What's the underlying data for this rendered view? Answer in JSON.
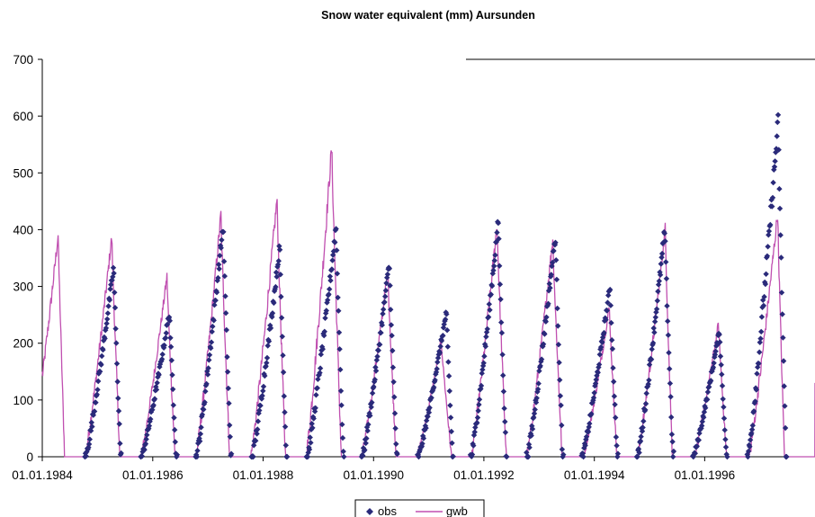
{
  "chart_data": {
    "type": "line",
    "title": "Snow water equivalent  (mm)  Aursunden",
    "xlabel": "",
    "ylabel": "",
    "ylim": [
      0,
      700
    ],
    "yticks": [
      "0",
      "100",
      "200",
      "300",
      "400",
      "500",
      "600",
      "700"
    ],
    "xlim": [
      "01.01.1984",
      "31.12.1997"
    ],
    "xticks": [
      "01.01.1984",
      "01.01.1986",
      "01.01.1988",
      "01.01.1990",
      "01.01.1992",
      "01.01.1994",
      "01.01.1996"
    ],
    "grid": false,
    "legend_position": "bottom-center",
    "series": [
      {
        "name": "obs",
        "style": "diamond-markers",
        "color": "#2a2a7a",
        "seasons": [
          {
            "start": "1984-10-15",
            "peak_date": "1985-04-18",
            "peak": 335,
            "end": "1985-06-02"
          },
          {
            "start": "1985-10-20",
            "peak_date": "1986-04-22",
            "peak": 255,
            "end": "1986-06-05"
          },
          {
            "start": "1986-10-18",
            "peak_date": "1987-04-12",
            "peak": 410,
            "end": "1987-06-01"
          },
          {
            "start": "1987-10-22",
            "peak_date": "1988-04-20",
            "peak": 370,
            "end": "1988-06-03"
          },
          {
            "start": "1988-10-20",
            "peak_date": "1989-04-28",
            "peak": 405,
            "end": "1989-06-15"
          },
          {
            "start": "1989-10-20",
            "peak_date": "1990-04-15",
            "peak": 342,
            "end": "1990-06-03"
          },
          {
            "start": "1990-10-25",
            "peak_date": "1991-04-28",
            "peak": 255,
            "end": "1991-06-08"
          },
          {
            "start": "1991-10-10",
            "peak_date": "1992-04-05",
            "peak": 415,
            "end": "1992-05-28"
          },
          {
            "start": "1992-10-15",
            "peak_date": "1993-04-18",
            "peak": 390,
            "end": "1993-06-05"
          },
          {
            "start": "1993-10-15",
            "peak_date": "1994-04-15",
            "peak": 300,
            "end": "1994-06-01"
          },
          {
            "start": "1994-10-15",
            "peak_date": "1995-04-12",
            "peak": 400,
            "end": "1995-06-05"
          },
          {
            "start": "1995-10-20",
            "peak_date": "1996-04-08",
            "peak": 222,
            "end": "1996-05-25"
          },
          {
            "start": "1996-10-15",
            "peak_date": "1997-05-01",
            "peak": 590,
            "end": "1997-06-22"
          }
        ]
      },
      {
        "name": "gwb",
        "style": "line",
        "color": "#c04fb0",
        "start_value": 150,
        "seasons": [
          {
            "start": "1983-10-20",
            "peak_date": "1984-04-15",
            "peak": 390,
            "end": "1984-05-28"
          },
          {
            "start": "1984-10-10",
            "peak_date": "1985-04-05",
            "peak": 388,
            "end": "1985-05-28"
          },
          {
            "start": "1985-10-15",
            "peak_date": "1986-04-05",
            "peak": 318,
            "end": "1986-05-28"
          },
          {
            "start": "1986-10-15",
            "peak_date": "1987-03-28",
            "peak": 428,
            "end": "1987-05-25"
          },
          {
            "start": "1987-10-12",
            "peak_date": "1988-04-02",
            "peak": 455,
            "end": "1988-05-28"
          },
          {
            "start": "1988-10-12",
            "peak_date": "1989-03-30",
            "peak": 545,
            "end": "1989-06-02"
          },
          {
            "start": "1989-10-15",
            "peak_date": "1990-04-05",
            "peak": 328,
            "end": "1990-05-30"
          },
          {
            "start": "1990-10-15",
            "peak_date": "1991-03-25",
            "peak": 205,
            "end": "1991-06-01"
          },
          {
            "start": "1991-10-10",
            "peak_date": "1992-03-28",
            "peak": 410,
            "end": "1992-05-28"
          },
          {
            "start": "1992-10-10",
            "peak_date": "1993-04-01",
            "peak": 385,
            "end": "1993-06-01"
          },
          {
            "start": "1993-10-20",
            "peak_date": "1994-04-10",
            "peak": 265,
            "end": "1994-05-30"
          },
          {
            "start": "1994-10-15",
            "peak_date": "1995-04-15",
            "peak": 402,
            "end": "1995-06-01"
          },
          {
            "start": "1995-10-25",
            "peak_date": "1996-04-01",
            "peak": 235,
            "end": "1996-05-25"
          },
          {
            "start": "1996-10-20",
            "peak_date": "1997-04-28",
            "peak": 430,
            "end": "1997-06-12"
          }
        ],
        "end_value": 130
      }
    ]
  }
}
